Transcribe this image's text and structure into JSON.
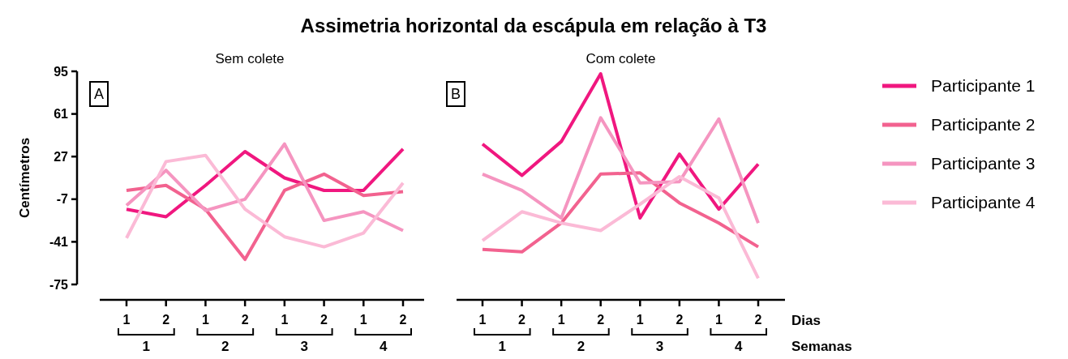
{
  "chart_data": [
    {
      "type": "line",
      "title": "Assimetria horizontal da escápula em relação à T3",
      "subtitle": "Sem colete",
      "ylabel": "Centímetros",
      "categories": [
        "1",
        "2",
        "1",
        "2",
        "1",
        "2",
        "1",
        "2"
      ],
      "ylim": [
        -75,
        95
      ],
      "yticks": [
        -75,
        -41,
        -7,
        27,
        61,
        95
      ],
      "grid": false,
      "line_style": "solid",
      "annotations": [
        "A",
        "1",
        "2",
        "3",
        "4"
      ],
      "series": [
        {
          "color": "#f0177f",
          "values": [
            -15,
            -21,
            4,
            31,
            10,
            0,
            0,
            33
          ]
        },
        {
          "color": "#f2628f",
          "values": [
            0,
            4,
            -15,
            -55,
            0,
            13,
            -4,
            -1
          ]
        },
        {
          "color": "#f595c0",
          "values": [
            -12,
            16,
            -16,
            -7,
            37,
            -24,
            -17,
            -32
          ]
        },
        {
          "color": "#fbbad6",
          "values": [
            -38,
            23,
            28,
            -15,
            -37,
            -45,
            -34,
            6
          ]
        }
      ]
    },
    {
      "type": "line",
      "subtitle": "Com colete",
      "categories": [
        "1",
        "2",
        "1",
        "2",
        "1",
        "2",
        "1",
        "2"
      ],
      "ylim": [
        -75,
        95
      ],
      "yticks": [
        -75,
        -41,
        -7,
        27,
        61,
        95
      ],
      "tick_labels": "x",
      "grid": false,
      "legend": "right",
      "line_style": "solid",
      "annotations": [
        "B",
        "1",
        "2",
        "3",
        "4",
        "Dias",
        "Semanas"
      ],
      "series": [
        {
          "name": "Participante 1",
          "color": "#f0177f",
          "values": [
            37,
            12,
            39,
            93,
            -22,
            29,
            -15,
            21
          ]
        },
        {
          "name": "Participante 2",
          "color": "#f2628f",
          "values": [
            -47,
            -49,
            -26,
            13,
            14,
            -10,
            -26,
            -45
          ]
        },
        {
          "name": "Participante 3",
          "color": "#f595c0",
          "values": [
            13,
            0,
            -22,
            58,
            6,
            7,
            57,
            -26
          ]
        },
        {
          "name": "Participante 4",
          "color": "#fbbad6",
          "values": [
            -40,
            -17,
            -26,
            -32,
            -11,
            11,
            -6,
            -70
          ]
        }
      ]
    }
  ]
}
